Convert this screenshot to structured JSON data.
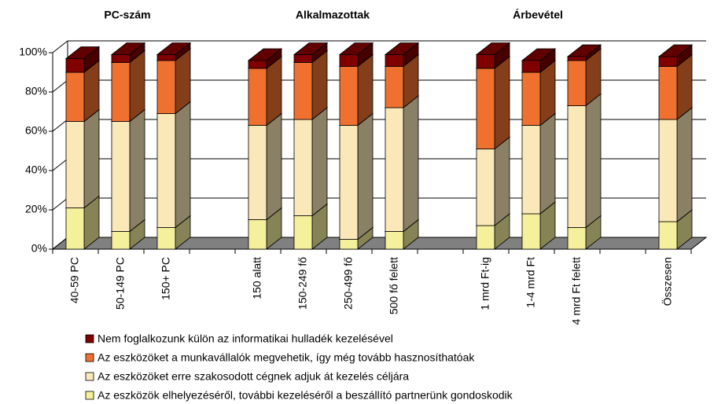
{
  "chart_data": {
    "type": "stacked_bar_3d",
    "annotations": [
      "PC-szám",
      "Alkalmazottak",
      "Árbevétel"
    ],
    "categories": [
      "40-59 PC",
      "50-149 PC",
      "150+ PC",
      null,
      "150 alatt",
      "150-249 fő",
      "250-499 fő",
      "500 fő felett",
      null,
      "1 mrd Ft-ig",
      "1-4 mrd Ft",
      "4 mrd Ft felett",
      null,
      "Összesen"
    ],
    "series": [
      {
        "name": "Az eszközök elhelyezéséről, további kezeléséről a beszállító partnerünk gondoskodik",
        "color": "#f4f09c",
        "values": [
          21,
          9,
          11,
          null,
          15,
          17,
          5,
          9,
          null,
          12,
          18,
          11,
          null,
          14
        ]
      },
      {
        "name": "Az eszközöket erre szakosodott cégnek adjuk át kezelés céljára",
        "color": "#fae8b8",
        "values": [
          44,
          56,
          58,
          null,
          48,
          49,
          58,
          63,
          null,
          39,
          45,
          62,
          null,
          52
        ]
      },
      {
        "name": "Az eszközöket a munkavállalók megvehetik, így még tovább hasznosíthatóak",
        "color": "#f07030",
        "values": [
          25,
          30,
          27,
          null,
          29,
          29,
          30,
          21,
          null,
          41,
          27,
          23,
          null,
          27
        ]
      },
      {
        "name": "Nem foglalkozunk külön az informatikai hulladék kezelésével",
        "color": "#800000",
        "values": [
          7,
          4,
          3,
          null,
          4,
          4,
          6,
          6,
          null,
          7,
          6,
          2,
          null,
          5
        ]
      }
    ],
    "ylim": [
      0,
      100
    ],
    "yticks": [
      {
        "value": 0,
        "label": "0%"
      },
      {
        "value": 20,
        "label": "20%"
      },
      {
        "value": 40,
        "label": "40%"
      },
      {
        "value": 60,
        "label": "60%"
      },
      {
        "value": 80,
        "label": "80%"
      },
      {
        "value": 100,
        "label": "100%"
      }
    ],
    "grid": true
  }
}
